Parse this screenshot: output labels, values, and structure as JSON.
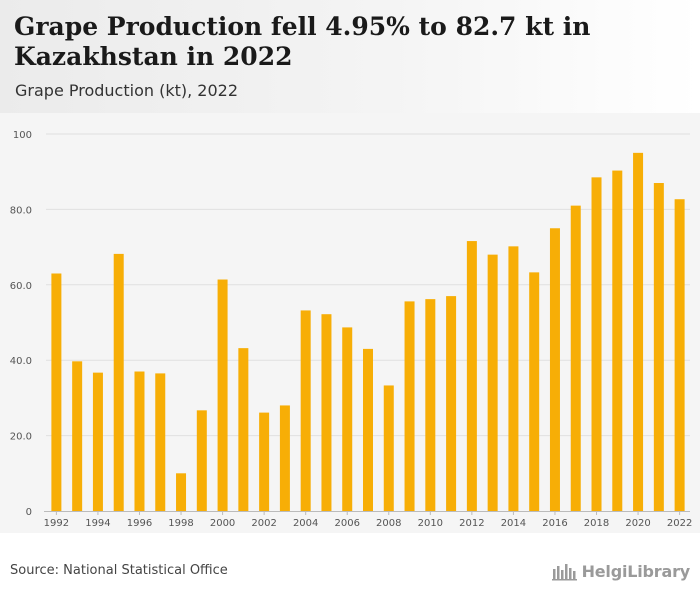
{
  "header": {
    "title": "Grape Production fell 4.95% to 82.7 kt in Kazakhstan in 2022",
    "subtitle": "Grape Production (kt), 2022"
  },
  "footer": {
    "source": "Source: National Statistical Office",
    "brand": "HelgiLibrary",
    "brand_icon": "library-logo-icon"
  },
  "colors": {
    "bar": "#F7AE06",
    "grid": "#e0e0e0",
    "plot_bg": "#f5f5f5",
    "tick_text": "#555555"
  },
  "chart_data": {
    "type": "bar",
    "title": "Grape Production fell 4.95% to 82.7 kt in Kazakhstan in 2022",
    "ylabel": "",
    "xlabel": "",
    "ylim": [
      0,
      100
    ],
    "y_ticks": [
      "0",
      "20.0",
      "40.0",
      "60.0",
      "80.0",
      "100"
    ],
    "y_tick_values": [
      0,
      20,
      40,
      60,
      80,
      100
    ],
    "grid": true,
    "categories": [
      "1992",
      "1993",
      "1994",
      "1995",
      "1996",
      "1997",
      "1998",
      "1999",
      "2000",
      "2001",
      "2002",
      "2003",
      "2004",
      "2005",
      "2006",
      "2007",
      "2008",
      "2009",
      "2010",
      "2011",
      "2012",
      "2013",
      "2014",
      "2015",
      "2016",
      "2017",
      "2018",
      "2019",
      "2020",
      "2021",
      "2022"
    ],
    "x_tick_labels": [
      "1992",
      "1994",
      "1996",
      "1998",
      "2000",
      "2002",
      "2004",
      "2006",
      "2008",
      "2010",
      "2012",
      "2014",
      "2016",
      "2018",
      "2020",
      "2022"
    ],
    "values": [
      63.0,
      39.7,
      36.7,
      68.2,
      37.0,
      36.5,
      10.0,
      26.7,
      61.4,
      43.2,
      26.1,
      28.0,
      53.2,
      52.2,
      48.7,
      43.0,
      33.3,
      55.6,
      56.2,
      57.0,
      71.6,
      68.0,
      70.2,
      63.3,
      75.0,
      81.0,
      88.5,
      90.3,
      95.0,
      87.0,
      82.7
    ]
  }
}
